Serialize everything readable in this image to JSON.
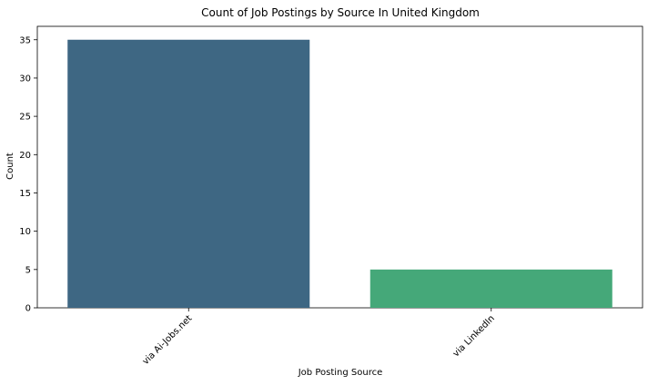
{
  "chart_data": {
    "type": "bar",
    "title": "Count of Job Postings by Source In United Kingdom",
    "xlabel": "Job Posting Source",
    "ylabel": "Count",
    "categories": [
      "via Ai-Jobs.net",
      "via LinkedIn"
    ],
    "values": [
      35,
      5
    ],
    "colors": [
      "#3e6783",
      "#45a879"
    ],
    "ylim": [
      0,
      36.75
    ],
    "yticks": [
      0,
      5,
      10,
      15,
      20,
      25,
      30,
      35
    ],
    "grid": false,
    "legend": "none"
  }
}
